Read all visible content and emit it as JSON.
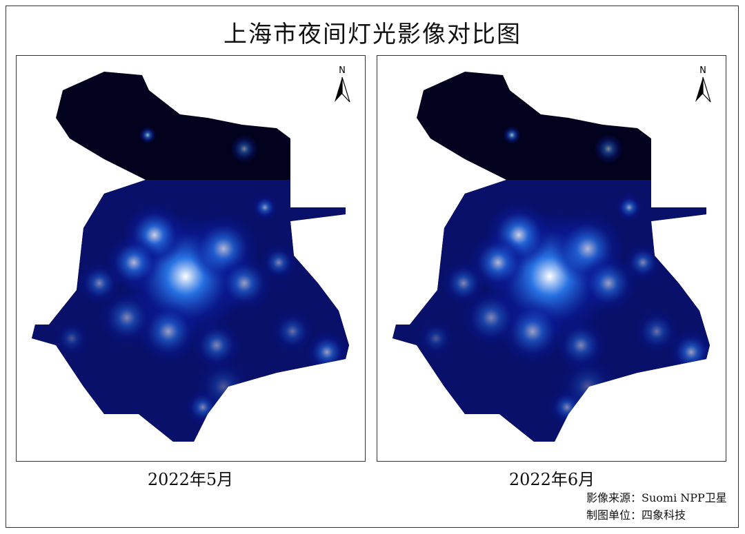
{
  "title": "上海市夜间灯光影像对比图",
  "panels": [
    {
      "caption": "2022年5月",
      "north_label": "N"
    },
    {
      "caption": "2022年6月",
      "north_label": "N"
    }
  ],
  "credits": {
    "source": "影像来源：Suomi NPP卫星",
    "maker": "制图单位：四象科技"
  },
  "colors": {
    "background_land": "#02021e",
    "light_low": "#0a1a9a",
    "light_mid": "#2a7cf0",
    "light_high": "#ffffff"
  }
}
